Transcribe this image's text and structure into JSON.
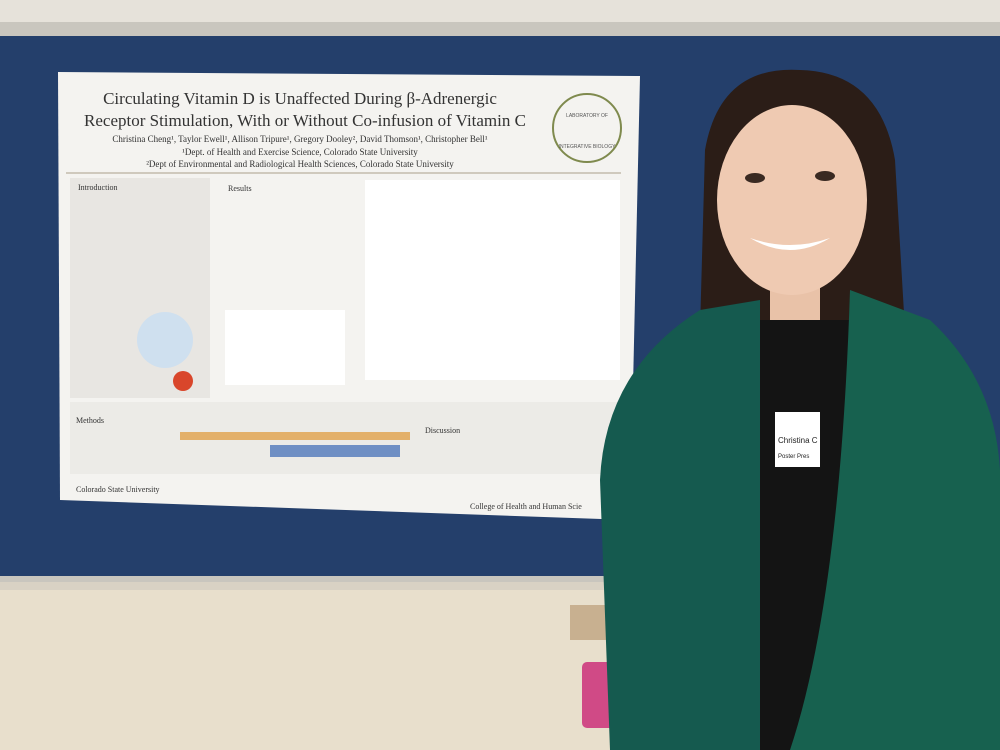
{
  "poster": {
    "title_lines": [
      "Circulating Vitamin D is Unaffected During β-Adrenergic",
      "Receptor Stimulation, With or Without Co-infusion of Vitamin C"
    ],
    "authors": "Christina Cheng¹, Taylor Ewell¹, Allison Tripure¹, Gregory Dooley², David Thomson¹, Christopher Bell¹",
    "affiliations": [
      "¹Dept. of Health and Exercise Science, Colorado State University",
      "²Dept of Environmental and Radiological Health Sciences, Colorado State University"
    ],
    "logo": [
      "LABORATORY OF",
      "INTEGRATIVE BIOLOGY"
    ],
    "sections": {
      "introduction": "Introduction",
      "results": "Results",
      "methods": "Methods",
      "discussion": "Discussion"
    },
    "footer_left": "Colorado State University",
    "footer_right": "College of Health and Human Scie"
  },
  "badge": {
    "name": "Christina C",
    "role": "Poster Pres"
  }
}
